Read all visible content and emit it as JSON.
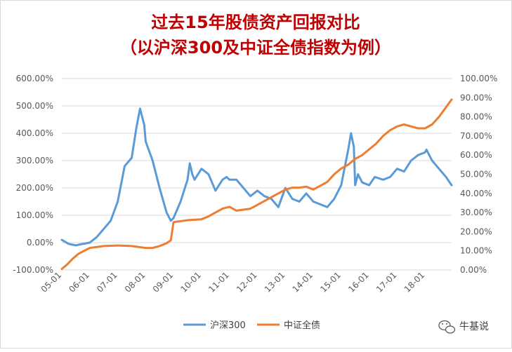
{
  "chart_data": {
    "type": "line",
    "title": "过去15年股债资产回报对比",
    "subtitle": "（以沪深300及中证全债指数为例）",
    "x_tick_labels": [
      "05-01",
      "06-01",
      "07-01",
      "08-01",
      "09-01",
      "10-01",
      "11-01",
      "12-01",
      "13-01",
      "14-01",
      "15-01",
      "16-01",
      "17-01",
      "18-01"
    ],
    "left_axis": {
      "ylim": [
        -100,
        600
      ],
      "ticks": [
        "-100.00%",
        "0.00%",
        "100.00%",
        "200.00%",
        "300.00%",
        "400.00%",
        "500.00%",
        "600.00%"
      ]
    },
    "right_axis": {
      "ylim": [
        0,
        100
      ],
      "ticks": [
        "0.00%",
        "10.00%",
        "20.00%",
        "30.00%",
        "40.00%",
        "50.00%",
        "60.00%",
        "70.00%",
        "80.00%",
        "90.00%",
        "100.00%"
      ]
    },
    "grid": true,
    "legend": "bottom",
    "series": [
      {
        "name": "沪深300",
        "axis": "left",
        "color": "#5b9bd5",
        "x": [
          2005.0,
          2005.25,
          2005.5,
          2005.75,
          2006.0,
          2006.25,
          2006.5,
          2006.75,
          2007.0,
          2007.25,
          2007.5,
          2007.67,
          2007.8,
          2007.85,
          2007.95,
          2008.0,
          2008.25,
          2008.5,
          2008.75,
          2008.9,
          2009.0,
          2009.25,
          2009.5,
          2009.58,
          2009.67,
          2009.75,
          2010.0,
          2010.25,
          2010.5,
          2010.75,
          2010.9,
          2011.0,
          2011.25,
          2011.5,
          2011.75,
          2012.0,
          2012.25,
          2012.5,
          2012.75,
          2013.0,
          2013.25,
          2013.5,
          2013.75,
          2014.0,
          2014.25,
          2014.5,
          2014.75,
          2015.0,
          2015.25,
          2015.35,
          2015.45,
          2015.5,
          2015.6,
          2015.75,
          2016.0,
          2016.2,
          2016.5,
          2016.75,
          2017.0,
          2017.25,
          2017.5,
          2017.75,
          2018.0,
          2018.05,
          2018.25,
          2018.5,
          2018.75,
          2018.95
        ],
        "values": [
          10,
          -5,
          -10,
          -5,
          0,
          20,
          50,
          80,
          150,
          280,
          310,
          420,
          490,
          470,
          430,
          370,
          300,
          200,
          110,
          80,
          90,
          150,
          230,
          290,
          250,
          230,
          270,
          250,
          190,
          230,
          240,
          230,
          230,
          200,
          170,
          190,
          170,
          160,
          130,
          200,
          160,
          150,
          180,
          150,
          140,
          130,
          160,
          210,
          340,
          400,
          350,
          210,
          250,
          220,
          210,
          240,
          230,
          240,
          270,
          260,
          300,
          320,
          330,
          340,
          300,
          270,
          240,
          210
        ]
      },
      {
        "name": "中证全债",
        "axis": "right",
        "color": "#ed7d31",
        "x": [
          2005.0,
          2005.2,
          2005.4,
          2005.6,
          2005.8,
          2006.0,
          2006.5,
          2007.0,
          2007.5,
          2008.0,
          2008.25,
          2008.5,
          2008.75,
          2008.9,
          2009.0,
          2009.5,
          2010.0,
          2010.25,
          2010.5,
          2010.75,
          2011.0,
          2011.25,
          2011.5,
          2011.75,
          2012.0,
          2012.25,
          2012.5,
          2012.75,
          2013.0,
          2013.25,
          2013.5,
          2013.75,
          2014.0,
          2014.25,
          2014.5,
          2014.75,
          2015.0,
          2015.25,
          2015.5,
          2015.75,
          2016.0,
          2016.25,
          2016.5,
          2016.75,
          2017.0,
          2017.25,
          2017.5,
          2017.75,
          2018.0,
          2018.25,
          2018.5,
          2018.75,
          2018.95
        ],
        "values": [
          0.5,
          3,
          6,
          8.5,
          10,
          11.5,
          12.5,
          12.8,
          12.5,
          11.5,
          11.5,
          12.5,
          14,
          15.5,
          25,
          26,
          26.5,
          28,
          30,
          32,
          33,
          31,
          31.5,
          32,
          34,
          36,
          38,
          40,
          42,
          43,
          43,
          43.5,
          42,
          44,
          46,
          50,
          53,
          55,
          58,
          60,
          63,
          66,
          70,
          73,
          75,
          76,
          75,
          74,
          74,
          76,
          80,
          85,
          89
        ]
      }
    ]
  },
  "legend": {
    "hs300": "沪深300",
    "bond": "中证全债"
  },
  "watermark": {
    "text": "牛基说",
    "icon": "wechat-icon"
  }
}
